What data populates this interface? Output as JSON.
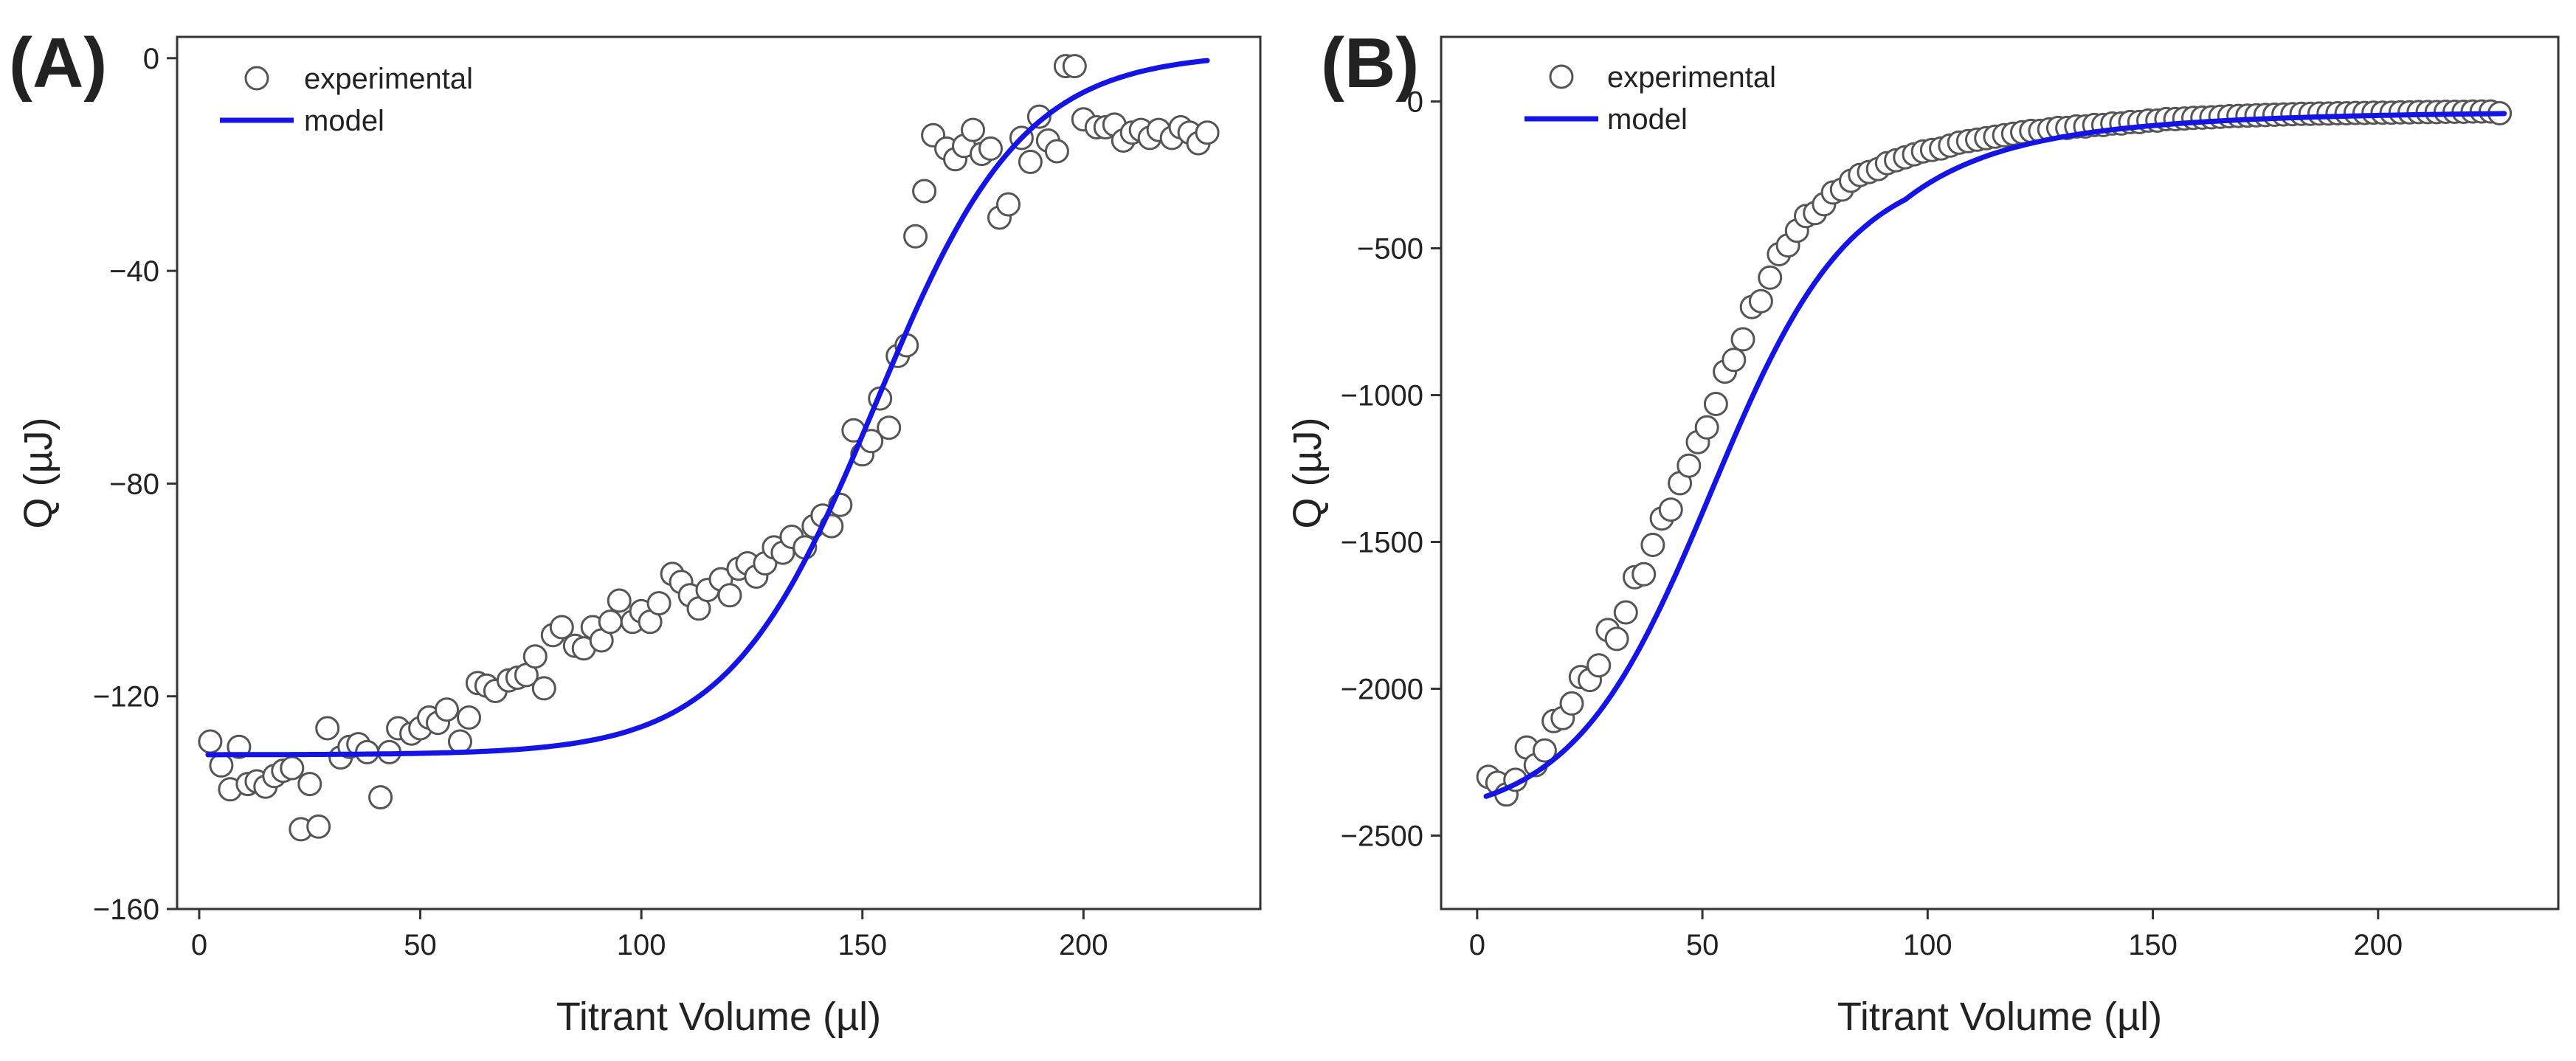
{
  "chart_data": [
    {
      "panel": "(A)",
      "type": "scatter",
      "xlabel": "Titrant Volume (µl)",
      "ylabel": "Q (µJ)",
      "xlim": [
        -5,
        240
      ],
      "ylim": [
        -160,
        4
      ],
      "xticks": [
        0,
        50,
        100,
        150,
        200
      ],
      "yticks": [
        0,
        -40,
        -80,
        -120,
        -160
      ],
      "xtick_labels": [
        "0",
        "50",
        "100",
        "150",
        "200"
      ],
      "ytick_labels": [
        "0",
        "−40",
        "−80",
        "−120",
        "−160"
      ],
      "legend_position": "top-left",
      "series": [
        {
          "name": "experimental",
          "kind": "markers",
          "x": [
            2.5,
            5,
            7,
            9,
            11,
            13,
            15,
            17,
            19,
            21,
            23,
            25,
            27,
            29,
            32,
            34,
            36,
            38,
            41,
            43,
            45,
            48,
            50,
            52,
            54,
            56,
            59,
            61,
            63,
            65,
            67,
            70,
            72,
            74,
            76,
            78,
            80,
            82,
            85,
            87,
            89,
            91,
            93,
            95,
            98,
            100,
            102,
            104,
            107,
            109,
            111,
            113,
            115,
            118,
            120,
            122,
            124,
            126,
            128,
            130,
            132,
            134,
            137,
            139,
            141,
            143,
            145,
            148,
            150,
            152,
            154,
            156,
            158,
            160,
            162,
            164,
            166,
            169,
            171,
            173,
            175,
            177,
            179,
            181,
            183,
            186,
            188,
            190,
            192,
            194,
            196,
            198,
            200,
            203,
            205,
            207,
            209,
            211,
            213,
            215,
            217,
            220,
            222,
            224,
            226,
            228
          ],
          "y": [
            -128.5,
            -133,
            -137.5,
            -129.5,
            -136.5,
            -136,
            -137,
            -135,
            -134,
            -133.5,
            -145,
            -136.5,
            -144.5,
            -126,
            -131.5,
            -129.5,
            -129,
            -130.5,
            -139,
            -130.5,
            -126,
            -127,
            -126,
            -124,
            -125,
            -122.5,
            -128.5,
            -124,
            -117.5,
            -118,
            -119,
            -117,
            -116.5,
            -116,
            -112.5,
            -118.5,
            -108.5,
            -107,
            -110.5,
            -111,
            -107,
            -109.5,
            -106,
            -102,
            -106,
            -104,
            -106,
            -102.5,
            -97,
            -98.5,
            -101,
            -103.5,
            -100,
            -98,
            -101,
            -96,
            -95,
            -97.5,
            -95,
            -92,
            -93,
            -90,
            -92,
            -88,
            -86,
            -88,
            -84,
            -70,
            -74.5,
            -72,
            -64,
            -69.5,
            -56,
            -54,
            -33.5,
            -25,
            -14.5,
            -17,
            -19,
            -16.5,
            -13.5,
            -18,
            -17,
            -30,
            -27.5,
            -15,
            -19.5,
            -11,
            -15.5,
            -17.5,
            -1.5,
            -1.5,
            -11.5,
            -13,
            -13,
            -12.5,
            -15.5,
            -14,
            -13.5,
            -15,
            -13.5,
            -15,
            -13,
            -14,
            -16,
            -14
          ]
        },
        {
          "name": "model",
          "kind": "line",
          "fn": "sigmoid",
          "params": {
            "base": -131,
            "top": 1,
            "mid": 153,
            "k": 0.06
          },
          "x_range": [
            2,
            228
          ]
        }
      ]
    },
    {
      "panel": "(B)",
      "type": "scatter",
      "xlabel": "Titrant Volume (µl)",
      "ylabel": "Q (µJ)",
      "xlim": [
        -8,
        240
      ],
      "ylim": [
        -2750,
        220
      ],
      "xticks": [
        0,
        50,
        100,
        150,
        200
      ],
      "yticks": [
        0,
        -500,
        -1000,
        -1500,
        -2000,
        -2500
      ],
      "xtick_labels": [
        "0",
        "50",
        "100",
        "150",
        "200"
      ],
      "ytick_labels": [
        "0",
        "−500",
        "−1000",
        "−1500",
        "−2000",
        "−2500"
      ],
      "legend_position": "top-left",
      "series": [
        {
          "name": "experimental",
          "kind": "markers",
          "x": [
            2.5,
            4.5,
            6.5,
            8.5,
            11,
            13,
            15,
            17,
            19,
            21,
            23,
            25,
            27,
            29,
            31,
            33,
            35,
            37,
            39,
            41,
            43,
            45,
            47,
            49,
            51,
            53,
            55,
            57,
            59,
            61,
            63,
            65,
            67,
            69,
            71,
            73,
            75,
            77,
            79,
            81,
            83,
            85,
            87,
            89,
            91,
            93,
            95,
            97,
            99,
            101,
            103,
            105,
            107,
            109,
            111,
            113,
            115,
            117,
            119,
            121,
            123,
            125,
            127,
            129,
            131,
            133,
            135,
            137,
            139,
            141,
            143,
            145,
            147,
            149,
            151,
            153,
            155,
            157,
            159,
            161,
            163,
            165,
            167,
            169,
            171,
            173,
            175,
            177,
            179,
            181,
            183,
            185,
            187,
            189,
            191,
            193,
            195,
            197,
            199,
            201,
            203,
            205,
            207,
            209,
            211,
            213,
            215,
            217,
            219,
            221,
            223,
            225,
            227
          ],
          "y": [
            -2300,
            -2320,
            -2360,
            -2310,
            -2200,
            -2260,
            -2210,
            -2110,
            -2100,
            -2050,
            -1960,
            -1970,
            -1920,
            -1800,
            -1830,
            -1740,
            -1620,
            -1610,
            -1510,
            -1420,
            -1390,
            -1300,
            -1240,
            -1160,
            -1110,
            -1030,
            -920,
            -880,
            -810,
            -700,
            -680,
            -600,
            -520,
            -490,
            -440,
            -390,
            -380,
            -350,
            -310,
            -300,
            -270,
            -250,
            -240,
            -230,
            -210,
            -200,
            -190,
            -180,
            -170,
            -165,
            -160,
            -150,
            -140,
            -135,
            -130,
            -125,
            -120,
            -115,
            -110,
            -105,
            -100,
            -100,
            -95,
            -90,
            -90,
            -85,
            -85,
            -80,
            -80,
            -75,
            -75,
            -70,
            -70,
            -65,
            -65,
            -60,
            -60,
            -58,
            -56,
            -55,
            -54,
            -52,
            -50,
            -49,
            -48,
            -47,
            -46,
            -45,
            -44,
            -43,
            -42,
            -42,
            -41,
            -41,
            -40,
            -40,
            -39,
            -39,
            -38,
            -38,
            -38,
            -37,
            -37,
            -36,
            -36,
            -36,
            -35,
            -35,
            -35,
            -34,
            -34,
            -34,
            -40
          ]
        },
        {
          "name": "model",
          "kind": "line",
          "fn": "binding",
          "params": {
            "A": -2450,
            "K": 0.018,
            "x0": 52
          },
          "x_range": [
            2,
            228
          ]
        }
      ]
    }
  ]
}
